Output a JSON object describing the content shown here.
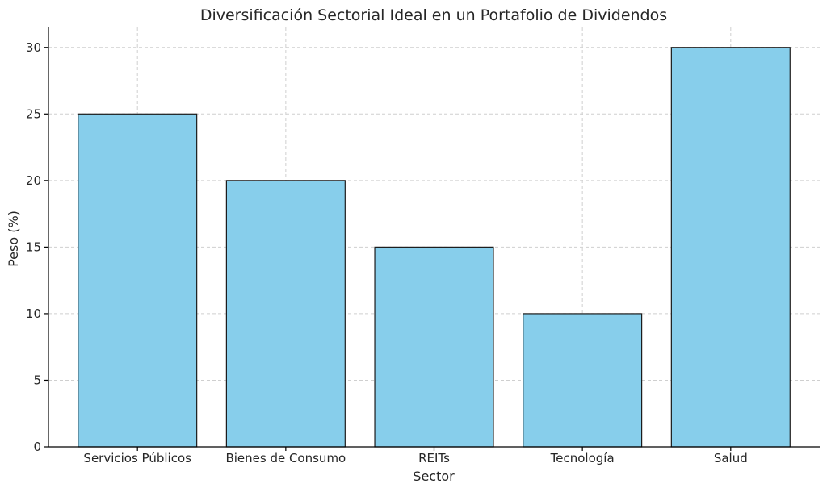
{
  "chart_data": {
    "type": "bar",
    "title": "Diversificación Sectorial Ideal en un Portafolio de Dividendos",
    "xlabel": "Sector",
    "ylabel": "Peso (%)",
    "categories": [
      "Servicios Públicos",
      "Bienes de Consumo",
      "REITs",
      "Tecnología",
      "Salud"
    ],
    "values": [
      25,
      20,
      15,
      10,
      30
    ],
    "ylim": [
      0,
      31.5
    ],
    "yticks": [
      0,
      5,
      10,
      15,
      20,
      25,
      30
    ],
    "grid": true,
    "bar_color": "#87CEEB",
    "edge_color": "#1a1a1a"
  }
}
